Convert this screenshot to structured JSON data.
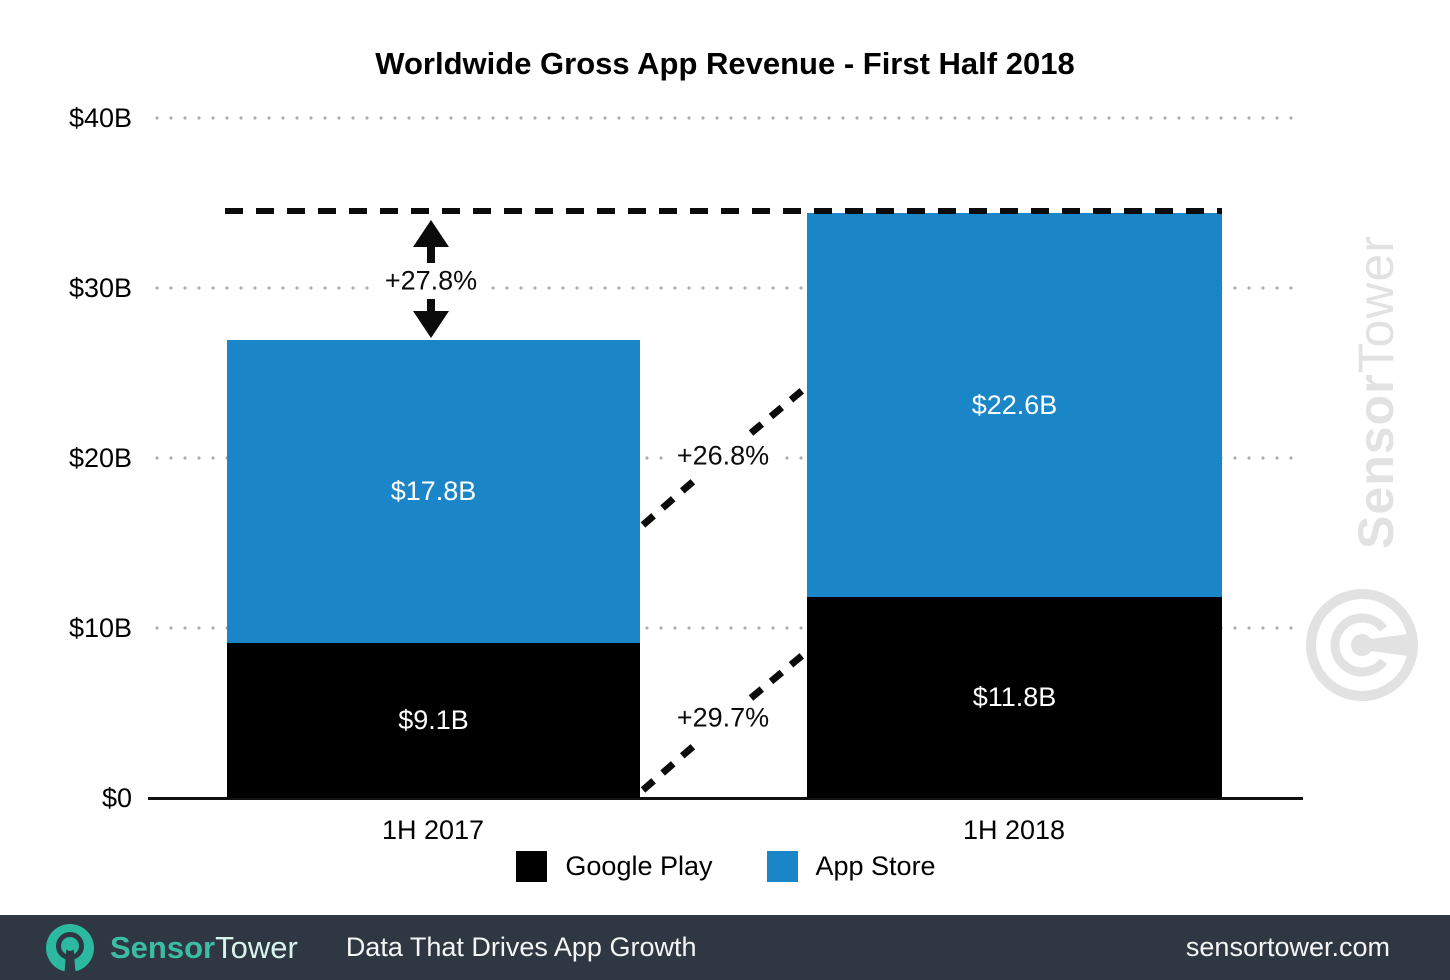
{
  "title": "Worldwide Gross App Revenue - First Half 2018",
  "chart_data": {
    "type": "bar",
    "stacked": true,
    "orientation": "vertical",
    "categories": [
      "1H 2017",
      "1H 2018"
    ],
    "series": [
      {
        "name": "Google Play",
        "color": "#000000",
        "values": [
          9.1,
          11.8
        ],
        "labels": [
          "$9.1B",
          "$11.8B"
        ]
      },
      {
        "name": "App Store",
        "color": "#1a86c8",
        "values": [
          17.8,
          22.6
        ],
        "labels": [
          "$17.8B",
          "$22.6B"
        ]
      }
    ],
    "totals": [
      26.9,
      34.4
    ],
    "y_axis": {
      "unit": "USD billions",
      "range": [
        0,
        40
      ],
      "ticks": [
        {
          "label": "$40B",
          "value": 40
        },
        {
          "label": "$30B",
          "value": 30
        },
        {
          "label": "$20B",
          "value": 20
        },
        {
          "label": "$10B",
          "value": 10
        },
        {
          "label": "$0",
          "value": 0
        }
      ]
    },
    "grid": "dotted horizontal gridlines",
    "legend": {
      "position": "bottom",
      "items": [
        {
          "label": "Google Play",
          "color": "#000000"
        },
        {
          "label": "App Store",
          "color": "#1a86c8"
        }
      ]
    },
    "annotations": [
      {
        "id": "total-growth",
        "label": "+27.8%",
        "meaning": "total revenue growth from 1H 2017 to 1H 2018"
      },
      {
        "id": "app-store-growth",
        "label": "+26.8%",
        "meaning": "App Store segment growth"
      },
      {
        "id": "google-play-growth",
        "label": "+29.7%",
        "meaning": "Google Play segment growth"
      }
    ],
    "reference_line": {
      "style": "dashed",
      "value": 34.4,
      "meaning": "1H 2018 total level"
    }
  },
  "watermark": {
    "brand_bold": "Sensor",
    "brand_light": "Tower"
  },
  "footer": {
    "brand_bold": "Sensor",
    "brand_regular": "Tower",
    "tagline": "Data That Drives App Growth",
    "website": "sensortower.com"
  }
}
